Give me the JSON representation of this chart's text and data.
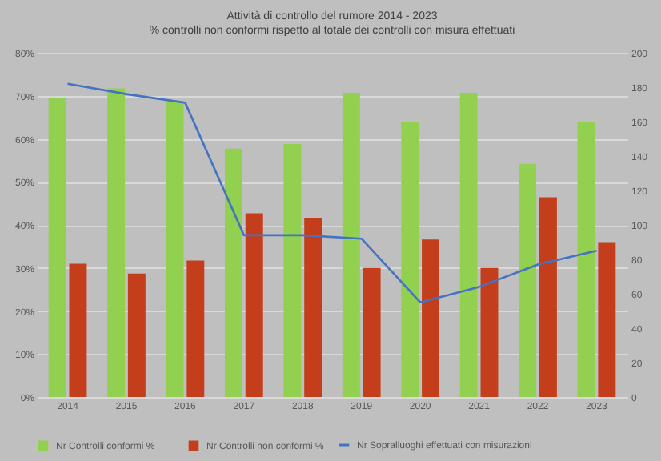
{
  "chart_data": {
    "type": "bar",
    "title": "Attività di controllo del rumore 2014 - 2023",
    "subtitle": "% controlli non conformi rispetto al totale dei controlli con misura effettuati",
    "categories": [
      "2014",
      "2015",
      "2016",
      "2017",
      "2018",
      "2019",
      "2020",
      "2021",
      "2022",
      "2023"
    ],
    "series": [
      {
        "name": "Nr Controlli conformi %",
        "color": "#92d050",
        "values": [
          69.5,
          71.7,
          68.5,
          57.7,
          58.8,
          70.7,
          64,
          70.7,
          54.2,
          64
        ]
      },
      {
        "name": "Nr Controlli non conformi %",
        "color": "#c43e1c",
        "values": [
          31,
          28.7,
          31.7,
          42.7,
          41.6,
          30,
          36.6,
          30,
          46.4,
          36
        ]
      },
      {
        "name": "Nr Sopralluoghi effettuati con misurazioni",
        "color": "#4472c4",
        "type": "line",
        "axis": "y2",
        "values": [
          182,
          176,
          171,
          94,
          94,
          92,
          55,
          64,
          77,
          85
        ]
      }
    ],
    "ylim": [
      0,
      80
    ],
    "yticks": [
      {
        "value": 0,
        "label": "0%"
      },
      {
        "value": 10,
        "label": "10%"
      },
      {
        "value": 20,
        "label": "20%"
      },
      {
        "value": 30,
        "label": "30%"
      },
      {
        "value": 40,
        "label": "40%"
      },
      {
        "value": 50,
        "label": "50%"
      },
      {
        "value": 60,
        "label": "60%"
      },
      {
        "value": 70,
        "label": "70%"
      },
      {
        "value": 80,
        "label": "80%"
      }
    ],
    "y2lim": [
      0,
      200
    ],
    "y2ticks": [
      0,
      20,
      40,
      60,
      80,
      100,
      120,
      140,
      160,
      180,
      200
    ],
    "grid": "y",
    "legend": "bottom"
  }
}
